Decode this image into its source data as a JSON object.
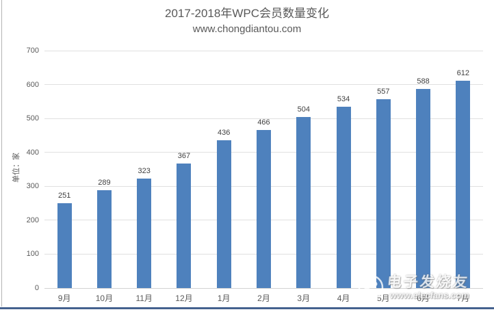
{
  "header": {
    "title": "2017-2018年WPC会员数量变化",
    "subtitle": "www.chongdiantou.com"
  },
  "chart_data": {
    "type": "bar",
    "title": "2017-2018年WPC会员数量变化",
    "subtitle": "www.chongdiantou.com",
    "categories": [
      "9月",
      "10月",
      "11月",
      "12月",
      "1月",
      "2月",
      "3月",
      "4月",
      "5月",
      "6月",
      "7月"
    ],
    "values": [
      251,
      289,
      323,
      367,
      436,
      466,
      504,
      534,
      557,
      588,
      612
    ],
    "xlabel": "",
    "ylabel": "单位：家",
    "ylim": [
      0,
      700
    ],
    "ytick_step": 100,
    "grid": true,
    "legend": "none",
    "data_labels": true,
    "bar_color": "#4e81bd"
  },
  "watermark": {
    "brand": "电子发烧友",
    "url": "www.elecfans.com"
  },
  "colors": {
    "bar": "#4e81bd",
    "title_text": "#595959",
    "axis_text": "#595959",
    "data_label_text": "#404040",
    "gridline": "#e0e0e0",
    "bottom_line": "#44618e",
    "left_border": "#b3b3b3",
    "background": "#ffffff"
  }
}
